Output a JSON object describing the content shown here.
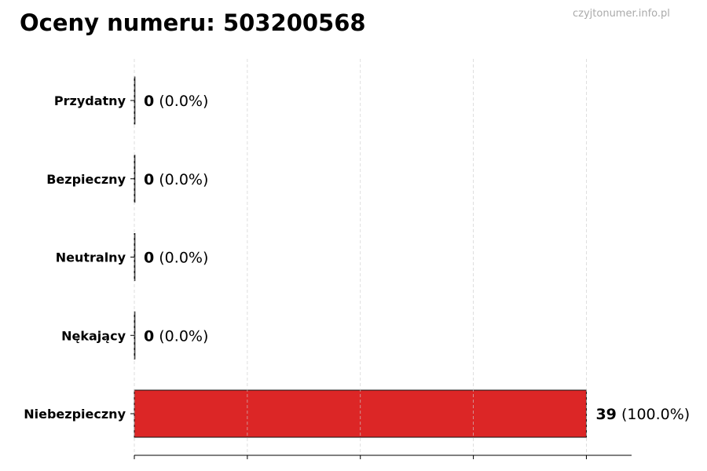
{
  "title": "Oceny numeru: 503200568",
  "watermark": "czyjtonumer.info.pl",
  "chart_data": {
    "type": "bar",
    "orientation": "horizontal",
    "title": "Oceny numeru: 503200568",
    "categories": [
      "Przydatny",
      "Bezpieczny",
      "Neutralny",
      "Nękający",
      "Niebezpieczny"
    ],
    "values": [
      0,
      0,
      0,
      0,
      39
    ],
    "labels": [
      {
        "count": "0",
        "pct": "(0.0%)"
      },
      {
        "count": "0",
        "pct": "(0.0%)"
      },
      {
        "count": "0",
        "pct": "(0.0%)"
      },
      {
        "count": "0",
        "pct": "(0.0%)"
      },
      {
        "count": "39",
        "pct": "(100.0%)"
      }
    ],
    "colors": [
      "#2e7d32",
      "#43a047",
      "#9e9e9e",
      "#fb8c00",
      "#dc2626"
    ],
    "xlim": [
      0,
      42.9
    ],
    "xticks": [
      0,
      9.75,
      19.5,
      29.25,
      39
    ],
    "xtick_labels_shown": false,
    "grid": "x-dashed",
    "xlabel": "",
    "ylabel": ""
  }
}
